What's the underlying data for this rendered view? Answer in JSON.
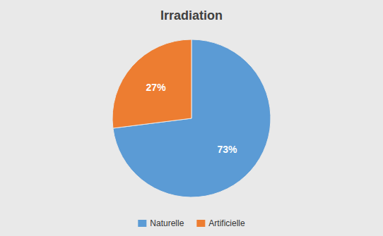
{
  "chart_data": {
    "type": "pie",
    "title": "Irradiation",
    "categories": [
      "Naturelle",
      "Artificielle"
    ],
    "values": [
      73,
      27
    ],
    "value_labels": [
      "73%",
      "27%"
    ],
    "colors": [
      "#5B9BD5",
      "#ED7D31"
    ],
    "data_labels": true,
    "legend": "bottom"
  }
}
